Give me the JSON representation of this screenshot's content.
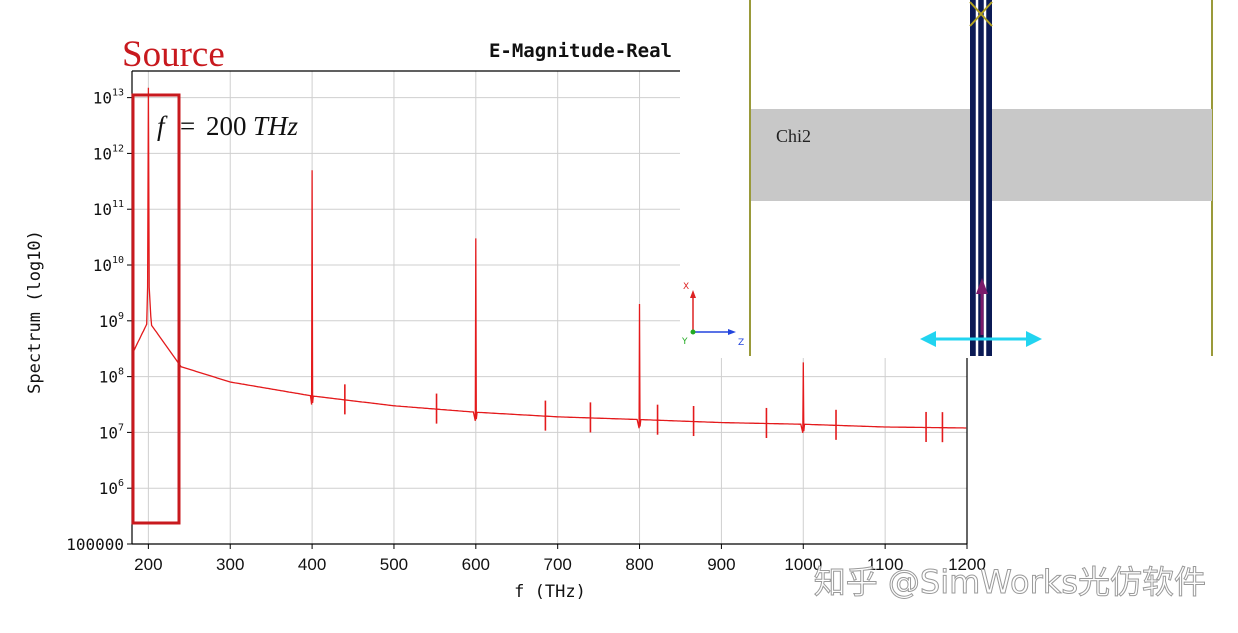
{
  "annotation": {
    "source_label": "Source",
    "freq_label_italic_f": "f",
    "freq_label_equals": "=",
    "freq_label_value": "200",
    "freq_label_unit": "THz"
  },
  "chart_data": {
    "type": "line",
    "title": "E-Magnitude-Real",
    "xlabel": "f (THz)",
    "ylabel": "Spectrum (log10)",
    "xlim": [
      180,
      1200
    ],
    "ylim": [
      100000,
      30000000000000
    ],
    "yscale": "log",
    "xticks": [
      200,
      300,
      400,
      500,
      600,
      700,
      800,
      900,
      1000,
      1100,
      1200
    ],
    "ytick_labels": [
      {
        "v": 100000,
        "base": "100000",
        "exp": ""
      },
      {
        "v": 1000000,
        "base": "10",
        "exp": "6"
      },
      {
        "v": 10000000,
        "base": "10",
        "exp": "7"
      },
      {
        "v": 100000000,
        "base": "10",
        "exp": "8"
      },
      {
        "v": 1000000000,
        "base": "10",
        "exp": "9"
      },
      {
        "v": 10000000000,
        "base": "10",
        "exp": "10"
      },
      {
        "v": 100000000000,
        "base": "10",
        "exp": "11"
      },
      {
        "v": 1000000000000,
        "base": "10",
        "exp": "12"
      },
      {
        "v": 10000000000000,
        "base": "10",
        "exp": "13"
      }
    ],
    "grid": true,
    "series": [
      {
        "color": "#e41a1c",
        "baseline": [
          [
            180,
            250000000
          ],
          [
            200,
            1000000000
          ],
          [
            240,
            150000000
          ],
          [
            300,
            80000000
          ],
          [
            400,
            45000000
          ],
          [
            500,
            30000000
          ],
          [
            600,
            23000000
          ],
          [
            700,
            19000000
          ],
          [
            800,
            17000000
          ],
          [
            900,
            15000000
          ],
          [
            1000,
            14000000
          ],
          [
            1100,
            12500000
          ],
          [
            1200,
            12000000
          ]
        ],
        "peaks": [
          {
            "x": 200,
            "y": 15000000000000
          },
          {
            "x": 400,
            "y": 500000000000
          },
          {
            "x": 600,
            "y": 30000000000
          },
          {
            "x": 800,
            "y": 2000000000
          },
          {
            "x": 1000,
            "y": 180000000
          }
        ]
      }
    ]
  },
  "simulation_view": {
    "region_label": "Chi2",
    "axes": {
      "x": "X",
      "y": "Y",
      "z": "Z"
    }
  },
  "watermark": "知乎 @SimWorks光仿软件"
}
